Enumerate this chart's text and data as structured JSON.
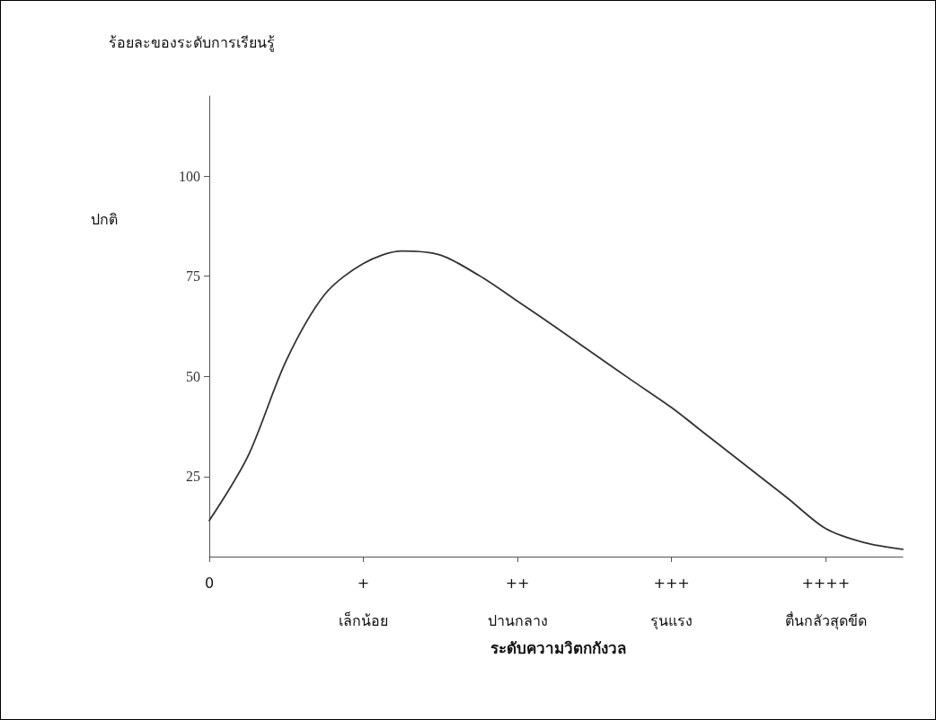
{
  "chart_data": {
    "type": "line",
    "ylabel": "ร้อยละของระดับการเรียนรู้",
    "annotations": [
      "ปกติ",
      "ระดับความวิตกกังวล"
    ],
    "categories": [
      "0",
      null,
      null,
      null,
      "+\nเล็กน้อย",
      null,
      null,
      null,
      "++\nปานกลาง",
      null,
      null,
      null,
      "+++\nรุนแรง",
      null,
      null,
      null,
      "++++\nตื่นกลัวสุดขีด",
      null,
      null
    ],
    "series": [
      {
        "color": "#333333",
        "values": [
          14,
          30,
          54,
          70.5,
          78.2,
          81.3,
          80.3,
          75.2,
          68.8,
          62.2,
          55.5,
          48.8,
          42.2,
          34.7,
          27.2,
          19.7,
          12,
          8.5,
          6.8
        ]
      }
    ],
    "ylim": [
      5,
      120
    ],
    "yticks": [
      25,
      50,
      75,
      100
    ],
    "grid": false,
    "marker": "none",
    "line_style": "solid"
  }
}
